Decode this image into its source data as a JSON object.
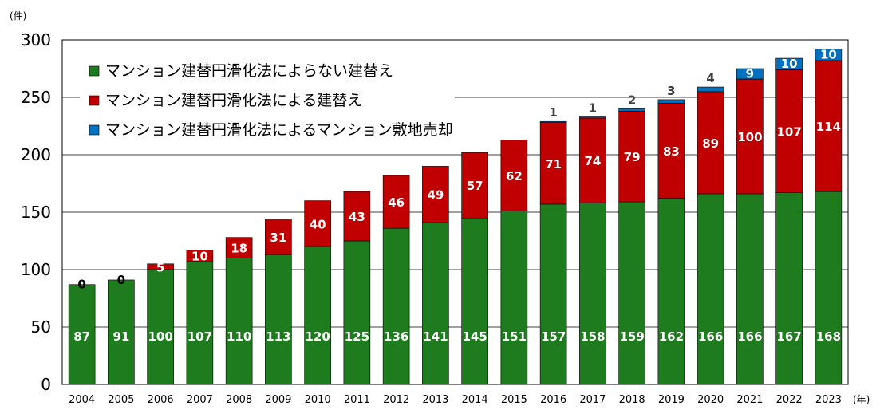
{
  "chart_data": {
    "type": "bar",
    "stacked": true,
    "categories": [
      "2004",
      "2005",
      "2006",
      "2007",
      "2008",
      "2009",
      "2010",
      "2011",
      "2012",
      "2013",
      "2014",
      "2015",
      "2016",
      "2017",
      "2018",
      "2019",
      "2020",
      "2021",
      "2022",
      "2023"
    ],
    "series": [
      {
        "name": "マンション建替円滑化法によらない建替え",
        "color": "#1e7b1e",
        "values": [
          87,
          91,
          100,
          107,
          110,
          113,
          120,
          125,
          136,
          141,
          145,
          151,
          157,
          158,
          159,
          162,
          166,
          166,
          167,
          168
        ]
      },
      {
        "name": "マンション建替円滑化法による建替え",
        "color": "#c00000",
        "values": [
          0,
          0,
          5,
          10,
          18,
          31,
          40,
          43,
          46,
          49,
          57,
          62,
          71,
          74,
          79,
          83,
          89,
          100,
          107,
          114
        ]
      },
      {
        "name": "マンション建替円滑化法によるマンション敷地売却",
        "color": "#0070c0",
        "values": [
          null,
          null,
          null,
          null,
          null,
          null,
          null,
          null,
          null,
          null,
          null,
          null,
          1,
          1,
          2,
          3,
          4,
          9,
          10,
          10
        ]
      }
    ],
    "ylim": [
      0,
      300
    ],
    "yticks": [
      0,
      50,
      100,
      150,
      200,
      250,
      300
    ],
    "y_unit": "(件)",
    "x_unit": "(年)",
    "grid": "horizontal",
    "legend_position": "top-left"
  }
}
